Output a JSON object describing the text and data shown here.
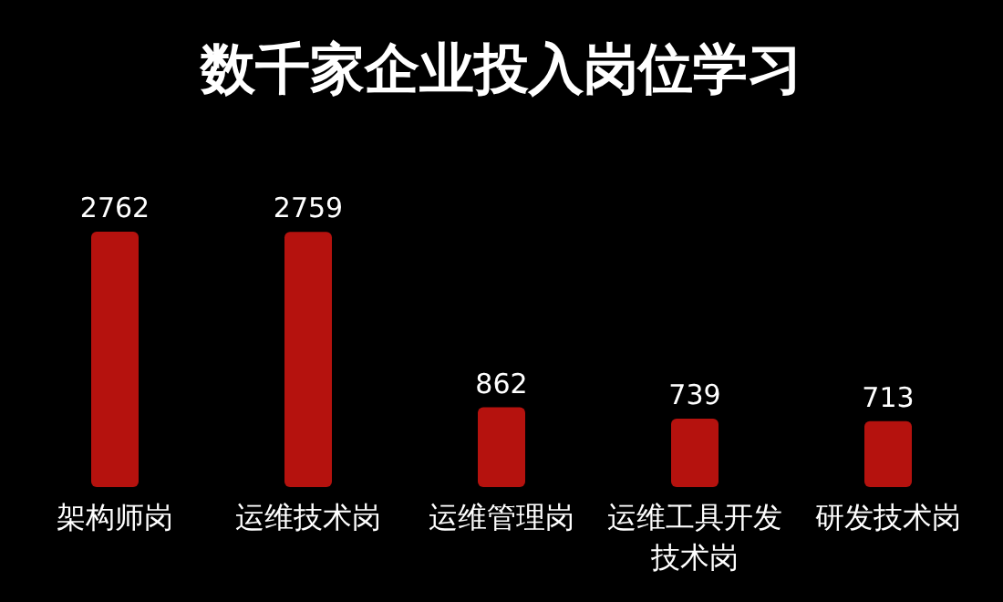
{
  "chart_data": {
    "type": "bar",
    "title": "数千家企业投入岗位学习",
    "categories": [
      "架构师岗",
      "运维技术岗",
      "运维管理岗",
      "运维工具开发技术岗",
      "研发技术岗"
    ],
    "values": [
      2762,
      2759,
      862,
      739,
      713
    ],
    "color": "#b5120e",
    "data_labels": true
  }
}
